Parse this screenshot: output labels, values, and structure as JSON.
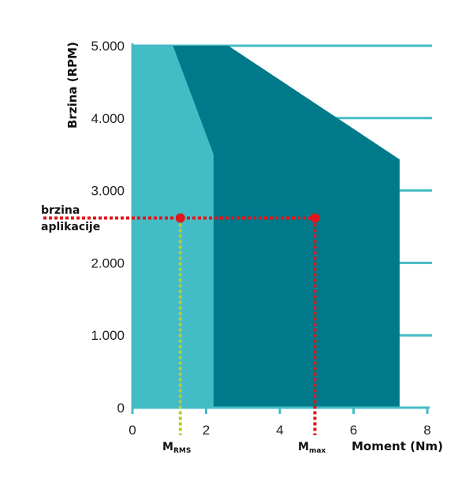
{
  "chart_data": {
    "type": "area",
    "xlabel": "Moment (Nm)",
    "ylabel": "Brzina (RPM)",
    "xlim": [
      0,
      8
    ],
    "ylim": [
      0,
      5000
    ],
    "x_ticks": [
      "0",
      "2",
      "4",
      "6",
      "8"
    ],
    "y_ticks": [
      "0",
      "1.000",
      "2.000",
      "3.000",
      "4.000",
      "5.000"
    ],
    "y_tick_values": [
      0,
      1000,
      2000,
      3000,
      4000,
      5000
    ],
    "grid": "horizontal",
    "series": [
      {
        "role": "peak-torque-region",
        "color": "#007a8a",
        "x": [
          0,
          2.6,
          7.25,
          7.25,
          0
        ],
        "y": [
          5000,
          5000,
          3430,
          0,
          0
        ]
      },
      {
        "role": "continuous-torque-region",
        "color": "#44bcc6",
        "x": [
          0,
          1.1,
          2.2,
          2.2,
          0
        ],
        "y": [
          5000,
          5000,
          3500,
          0,
          0
        ]
      }
    ],
    "annotations": {
      "speed_label_line1": "brzina",
      "speed_label_line2": "aplikacije",
      "application_speed": 2620,
      "m_rms_main": "M",
      "m_rms_sub": "RMS",
      "m_rms_value": 1.3,
      "m_max_main": "M",
      "m_max_sub": "max",
      "m_max_value": 4.95
    },
    "colors": {
      "axis": "#44bcc6",
      "grid": "#44bcc6",
      "speed_line": "#e3141b",
      "rms_line": "#b5cf2a"
    }
  }
}
